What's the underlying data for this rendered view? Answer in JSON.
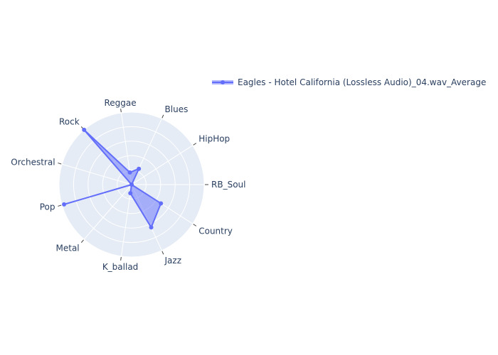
{
  "chart_data": {
    "type": "radar",
    "title": "",
    "categories": [
      "RB_Soul",
      "HipHop",
      "Blues",
      "Reggae",
      "Rock",
      "Orchestral",
      "Pop",
      "Metal",
      "K_ballad",
      "Jazz",
      "Country"
    ],
    "range": [
      0,
      1
    ],
    "grid": true,
    "legend_position": "top-right",
    "series": [
      {
        "name": "Eagles - Hotel California (Lossless Audio)_04.wav_Average",
        "values": [
          0.0,
          0.0,
          0.24,
          0.17,
          1.0,
          0.0,
          0.97,
          0.0,
          0.12,
          0.65,
          0.48
        ],
        "color": "#636efa",
        "fill": "rgba(99,110,250,0.5)"
      }
    ],
    "polar_background": "#e5ecf6",
    "gridline_color": "#ffffff"
  }
}
